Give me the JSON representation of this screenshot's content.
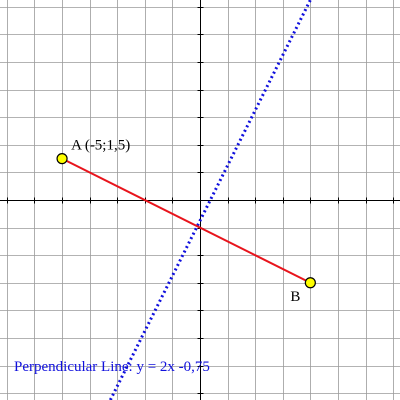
{
  "diagram": {
    "point_a": {
      "label": "A (-5;1,5)",
      "x": -5,
      "y": 1.5
    },
    "point_b": {
      "label": "B",
      "x": 4,
      "y": -3
    },
    "perpendicular_line": {
      "label": "Perpendicular Line: y = 2x -0,75",
      "slope": 2,
      "intercept": -0.75
    },
    "x_range": [
      -7.25,
      7.25
    ],
    "y_range": [
      -7.25,
      7.25
    ],
    "grid_step": 1,
    "grid": true
  },
  "colors": {
    "segment": "#e8141c",
    "perpendicular": "#1010dd",
    "point_fill": "#ffff00",
    "point_stroke": "#000000",
    "grid": "#9a9a9a",
    "axis": "#000000",
    "equation_text": "#1010dd"
  }
}
